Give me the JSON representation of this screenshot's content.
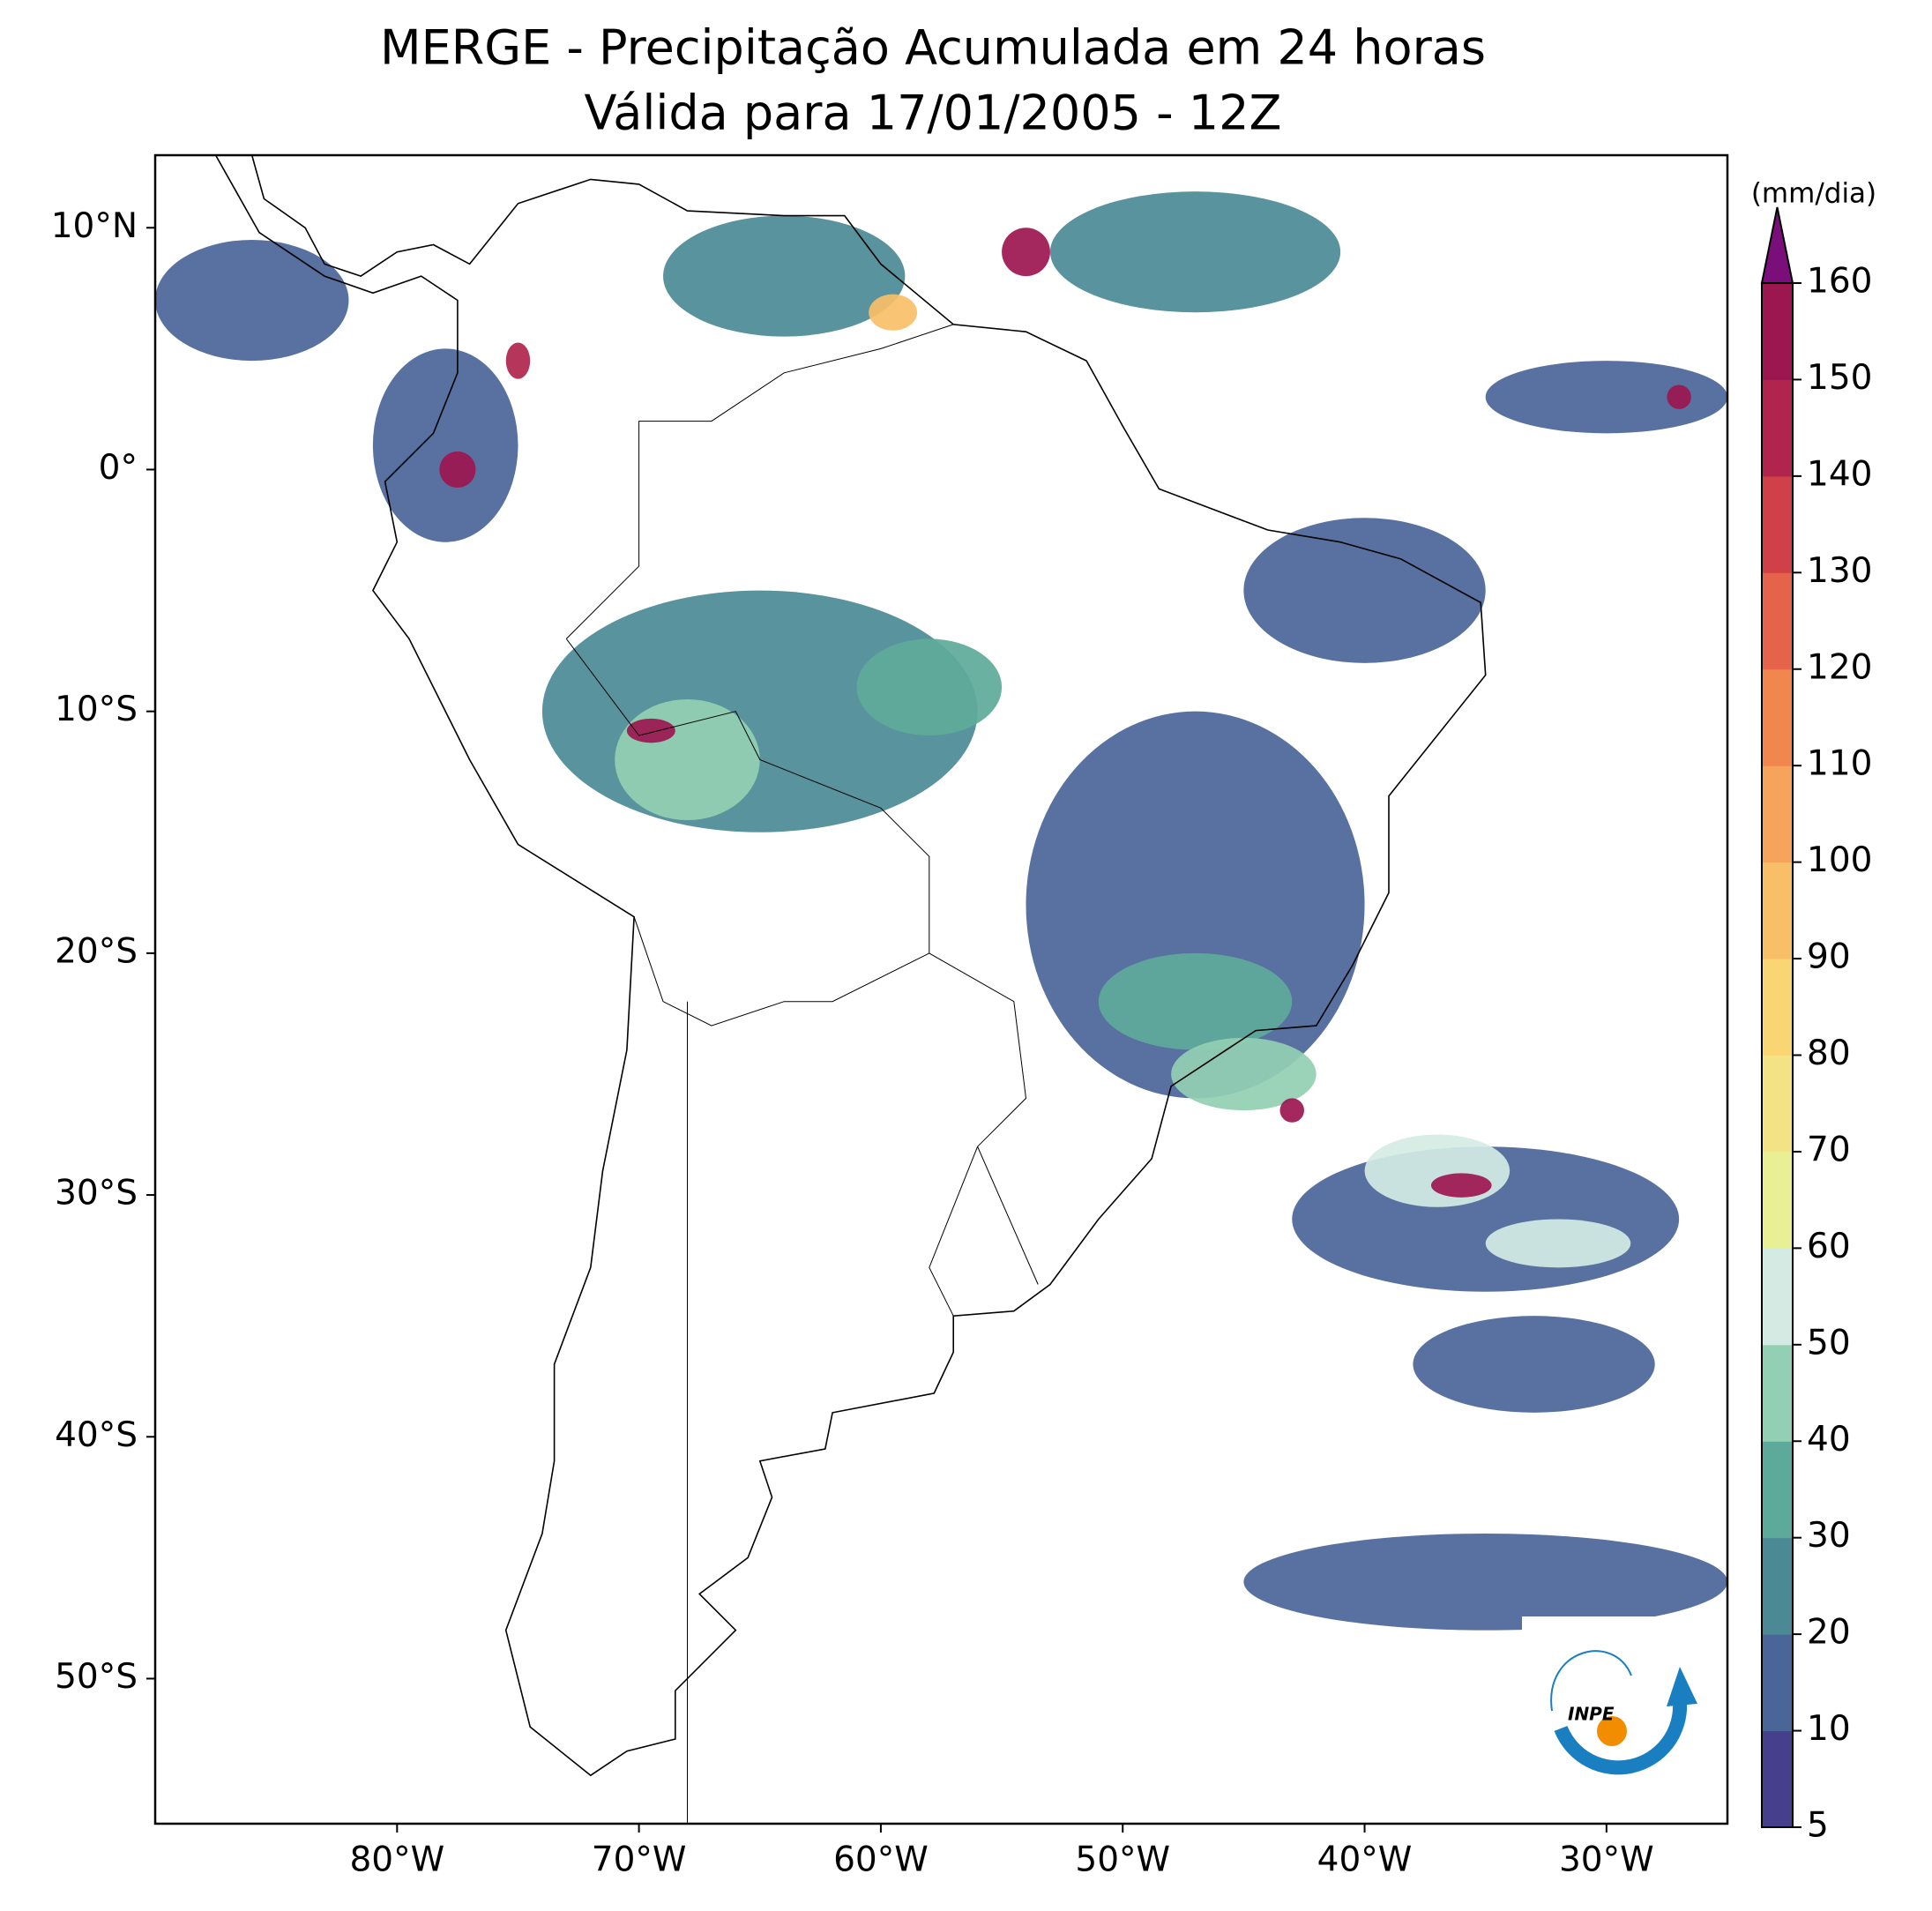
{
  "chart_data": {
    "type": "map",
    "title": "MERGE - Precipitação Acumulada em 24 horas",
    "subtitle": "Válida para 17/01/2005 - 12Z",
    "xlim": [
      -90,
      -25
    ],
    "ylim": [
      -56,
      13
    ],
    "xticks": [
      {
        "value": -80,
        "label": "80°W"
      },
      {
        "value": -70,
        "label": "70°W"
      },
      {
        "value": -60,
        "label": "60°W"
      },
      {
        "value": -50,
        "label": "50°W"
      },
      {
        "value": -40,
        "label": "40°W"
      },
      {
        "value": -30,
        "label": "30°W"
      }
    ],
    "yticks": [
      {
        "value": 10,
        "label": "10°N"
      },
      {
        "value": 0,
        "label": "0°"
      },
      {
        "value": -10,
        "label": "10°S"
      },
      {
        "value": -20,
        "label": "20°S"
      },
      {
        "value": -30,
        "label": "30°S"
      },
      {
        "value": -40,
        "label": "40°S"
      },
      {
        "value": -50,
        "label": "50°S"
      }
    ],
    "colorbar": {
      "label": "(mm/dia)",
      "ticks": [
        5,
        10,
        20,
        30,
        40,
        50,
        60,
        70,
        80,
        90,
        100,
        110,
        120,
        130,
        140,
        150,
        160
      ],
      "colors": [
        "#453f8c",
        "#4a6598",
        "#4b8a95",
        "#5eaa9a",
        "#93cfb3",
        "#d4ebe4",
        "#e9ef94",
        "#f3e384",
        "#f9d574",
        "#f9bf68",
        "#f6a35c",
        "#f2864f",
        "#e5634a",
        "#cf4049",
        "#b0244d",
        "#9c1650"
      ],
      "extend_color": "#7a0f7a"
    },
    "precip_cells": [
      {
        "lon": -65,
        "lat": -10,
        "value": 20,
        "extent": [
          18,
          10
        ]
      },
      {
        "lon": -47,
        "lat": -18,
        "value": 15,
        "extent": [
          14,
          16
        ]
      },
      {
        "lon": -64,
        "lat": 8,
        "value": 20,
        "extent": [
          10,
          5
        ]
      },
      {
        "lon": -47,
        "lat": 9,
        "value": 20,
        "extent": [
          12,
          5
        ]
      },
      {
        "lon": -78,
        "lat": 1,
        "value": 15,
        "extent": [
          6,
          8
        ]
      },
      {
        "lon": -86,
        "lat": 7,
        "value": 15,
        "extent": [
          8,
          5
        ]
      },
      {
        "lon": -40,
        "lat": -5,
        "value": 15,
        "extent": [
          10,
          6
        ]
      },
      {
        "lon": -35,
        "lat": -31,
        "value": 15,
        "extent": [
          16,
          6
        ]
      },
      {
        "lon": -33,
        "lat": -37,
        "value": 10,
        "extent": [
          10,
          4
        ]
      },
      {
        "lon": -35,
        "lat": -46,
        "value": 10,
        "extent": [
          20,
          4
        ]
      },
      {
        "lon": -30,
        "lat": 3,
        "value": 15,
        "extent": [
          10,
          3
        ]
      },
      {
        "lon": -68,
        "lat": -12,
        "value": 45,
        "extent": [
          6,
          5
        ]
      },
      {
        "lon": -58,
        "lat": -9,
        "value": 35,
        "extent": [
          6,
          4
        ]
      },
      {
        "lon": -47,
        "lat": -22,
        "value": 35,
        "extent": [
          8,
          4
        ]
      },
      {
        "lon": -45,
        "lat": -25,
        "value": 40,
        "extent": [
          6,
          3
        ]
      },
      {
        "lon": -37,
        "lat": -29,
        "value": 50,
        "extent": [
          6,
          3
        ]
      },
      {
        "lon": -32,
        "lat": -32,
        "value": 55,
        "extent": [
          6,
          2
        ]
      },
      {
        "lon": -69.5,
        "lat": -10.8,
        "value": 150,
        "extent": [
          2,
          1
        ]
      },
      {
        "lon": -54,
        "lat": 9,
        "value": 150,
        "extent": [
          2,
          2
        ]
      },
      {
        "lon": -77.5,
        "lat": 0,
        "value": 150,
        "extent": [
          1.5,
          1.5
        ]
      },
      {
        "lon": -36,
        "lat": -29.6,
        "value": 155,
        "extent": [
          2.5,
          1
        ]
      },
      {
        "lon": -43,
        "lat": -26.5,
        "value": 150,
        "extent": [
          1,
          1
        ]
      },
      {
        "lon": -75,
        "lat": 4.5,
        "value": 140,
        "extent": [
          1,
          1.5
        ]
      },
      {
        "lon": -59.5,
        "lat": 6.5,
        "value": 90,
        "extent": [
          2,
          1.5
        ]
      },
      {
        "lon": -27,
        "lat": 3,
        "value": 150,
        "extent": [
          1,
          1
        ]
      }
    ],
    "logo_text": "INPE"
  }
}
